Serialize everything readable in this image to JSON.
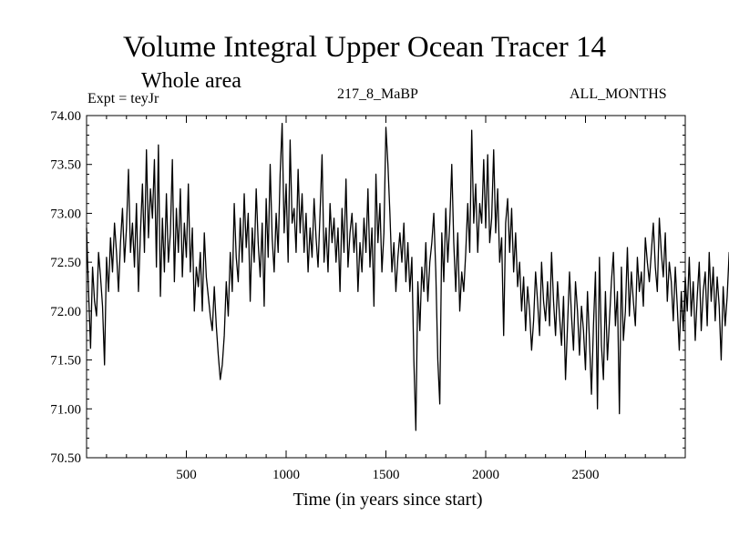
{
  "chart_data": {
    "type": "line",
    "title": "Volume Integral Upper Ocean Tracer 14",
    "subtitle": "Whole area",
    "experiment_label": "Expt = teyJr",
    "run_label": "217_8_MaBP",
    "period_label": "ALL_MONTHS",
    "xlabel": "Time (in years since start)",
    "ylabel": "",
    "xlim": [
      0,
      3000
    ],
    "ylim": [
      70.5,
      74.0
    ],
    "x_ticks": [
      500,
      1000,
      1500,
      2000,
      2500
    ],
    "x_tick_labels": [
      "500",
      "1000",
      "1500",
      "2000",
      "2500"
    ],
    "y_ticks": [
      70.5,
      71.0,
      71.5,
      72.0,
      72.5,
      73.0,
      73.5,
      74.0
    ],
    "y_tick_labels": [
      "70.50",
      "71.00",
      "71.50",
      "72.00",
      "72.50",
      "73.00",
      "73.50",
      "74.00"
    ],
    "grid": false,
    "series": [
      {
        "name": "Tracer 14",
        "x_start": 0,
        "x_step": 10,
        "values": [
          72.85,
          72.2,
          71.62,
          72.45,
          72.1,
          71.95,
          72.6,
          72.35,
          72.05,
          71.45,
          72.55,
          72.2,
          72.75,
          72.4,
          72.9,
          72.6,
          72.2,
          72.7,
          73.05,
          72.5,
          72.85,
          73.45,
          72.6,
          72.9,
          72.45,
          73.1,
          72.2,
          72.8,
          73.3,
          72.6,
          73.65,
          72.75,
          73.25,
          72.95,
          73.55,
          72.45,
          73.7,
          72.15,
          72.95,
          72.4,
          73.2,
          72.5,
          72.8,
          73.55,
          72.3,
          73.05,
          72.6,
          73.25,
          72.35,
          72.9,
          72.55,
          73.3,
          72.4,
          72.85,
          72.0,
          72.45,
          72.25,
          72.6,
          72.0,
          72.8,
          72.35,
          72.15,
          71.95,
          71.8,
          72.25,
          71.85,
          71.55,
          71.3,
          71.45,
          71.75,
          72.3,
          71.95,
          72.6,
          72.2,
          73.1,
          72.55,
          72.3,
          72.95,
          72.5,
          73.2,
          72.65,
          73.0,
          72.1,
          72.85,
          72.5,
          73.25,
          72.7,
          72.35,
          72.9,
          72.05,
          73.15,
          72.55,
          73.5,
          72.75,
          72.4,
          73.0,
          72.6,
          73.4,
          73.92,
          72.8,
          73.3,
          72.5,
          73.75,
          72.9,
          73.05,
          72.6,
          73.45,
          72.8,
          73.2,
          72.6,
          73.0,
          72.4,
          72.85,
          72.55,
          73.15,
          72.75,
          72.45,
          73.0,
          73.6,
          72.5,
          72.85,
          72.4,
          73.1,
          72.7,
          72.95,
          72.5,
          72.85,
          72.2,
          73.05,
          72.6,
          73.35,
          72.45,
          72.8,
          73.0,
          72.6,
          72.9,
          72.2,
          72.7,
          72.4,
          72.95,
          72.6,
          73.25,
          72.45,
          72.85,
          72.05,
          73.4,
          72.7,
          73.1,
          72.4,
          72.8,
          73.88,
          73.5,
          73.0,
          72.4,
          72.7,
          72.2,
          72.55,
          72.8,
          72.5,
          72.9,
          72.3,
          72.7,
          72.2,
          72.55,
          71.5,
          70.78,
          72.3,
          71.8,
          72.45,
          72.2,
          72.7,
          72.1,
          72.5,
          72.7,
          73.0,
          72.4,
          71.5,
          71.05,
          72.8,
          72.3,
          73.05,
          72.5,
          72.9,
          73.5,
          72.7,
          72.2,
          72.8,
          72.0,
          72.4,
          72.2,
          72.6,
          73.1,
          72.6,
          73.85,
          72.9,
          73.3,
          72.6,
          73.1,
          72.9,
          73.55,
          72.85,
          73.6,
          72.7,
          72.95,
          73.65,
          72.8,
          73.25,
          72.5,
          72.75,
          71.75,
          72.9,
          73.15,
          72.6,
          73.05,
          72.4,
          72.8,
          72.25,
          72.5,
          72.0,
          72.35,
          71.8,
          72.25,
          72.0,
          71.6,
          71.9,
          72.4,
          72.1,
          71.75,
          72.5,
          72.1,
          71.9,
          72.3,
          71.85,
          72.6,
          72.1,
          71.75,
          72.3,
          71.95,
          71.65,
          72.15,
          71.3,
          71.85,
          72.4,
          71.95,
          71.6,
          72.3,
          72.0,
          71.55,
          72.05,
          71.8,
          71.4,
          72.2,
          71.7,
          71.15,
          71.85,
          72.4,
          71.0,
          72.55,
          71.65,
          71.3,
          72.2,
          71.5,
          71.9,
          72.3,
          72.6,
          71.85,
          72.2,
          70.95,
          72.45,
          71.7,
          72.0,
          72.65,
          71.95,
          72.4,
          72.1,
          71.85,
          72.55,
          72.2,
          72.4,
          72.05,
          72.75,
          72.5,
          72.3,
          72.6,
          72.9,
          72.45,
          72.2,
          72.95,
          72.6,
          72.35,
          72.8,
          72.1,
          72.5,
          72.3,
          71.9,
          72.45,
          72.05,
          71.6,
          72.2,
          71.8,
          72.35,
          72.0,
          72.55,
          71.95,
          72.3,
          71.7,
          72.15,
          72.5,
          71.8,
          72.2,
          72.4,
          71.85,
          72.6,
          72.1,
          72.45,
          71.9,
          72.35,
          72.05,
          71.5,
          72.25,
          71.85,
          72.15,
          72.6,
          71.95,
          72.35,
          72.7,
          72.2,
          72.8,
          72.35,
          71.65,
          72.45,
          72.1,
          72.7,
          72.3,
          72.55,
          72.0,
          72.9,
          72.4,
          72.15,
          72.55,
          71.8,
          72.2,
          72.65,
          72.05,
          72.45,
          72.85,
          72.3,
          72.6,
          72.1,
          72.95,
          72.5,
          72.25,
          72.7,
          72.2,
          72.55,
          72.0,
          72.45,
          72.9,
          72.3,
          72.75,
          72.15,
          72.55,
          72.85,
          72.3,
          72.6,
          72.05,
          72.4,
          71.85,
          72.3,
          72.7,
          72.2,
          72.95,
          72.45,
          73.0,
          72.5,
          73.25,
          72.7,
          72.3,
          72.9,
          72.4,
          72.2,
          72.6,
          72.8,
          72.35,
          72.95,
          72.5,
          72.2,
          72.7,
          72.4,
          72.85,
          72.25,
          72.55,
          72.0,
          72.3,
          72.65,
          72.15,
          72.4,
          72.8,
          72.2,
          72.45,
          71.15,
          72.3,
          72.7,
          72.05,
          71.4,
          72.55,
          72.2,
          72.6,
          71.65,
          72.4,
          72.15,
          72.6,
          71.95,
          71.3,
          72.2,
          72.55,
          72.0,
          72.75,
          72.3,
          73.05,
          72.6,
          72.95,
          72.5,
          72.85,
          72.4,
          72.7,
          72.25,
          71.7,
          72.05,
          72.4,
          73.55,
          72.8,
          72.35,
          72.9,
          72.5,
          72.1,
          71.95,
          71.5,
          72.2,
          71.8,
          71.6,
          72.05,
          71.7,
          71.95
        ]
      }
    ]
  }
}
